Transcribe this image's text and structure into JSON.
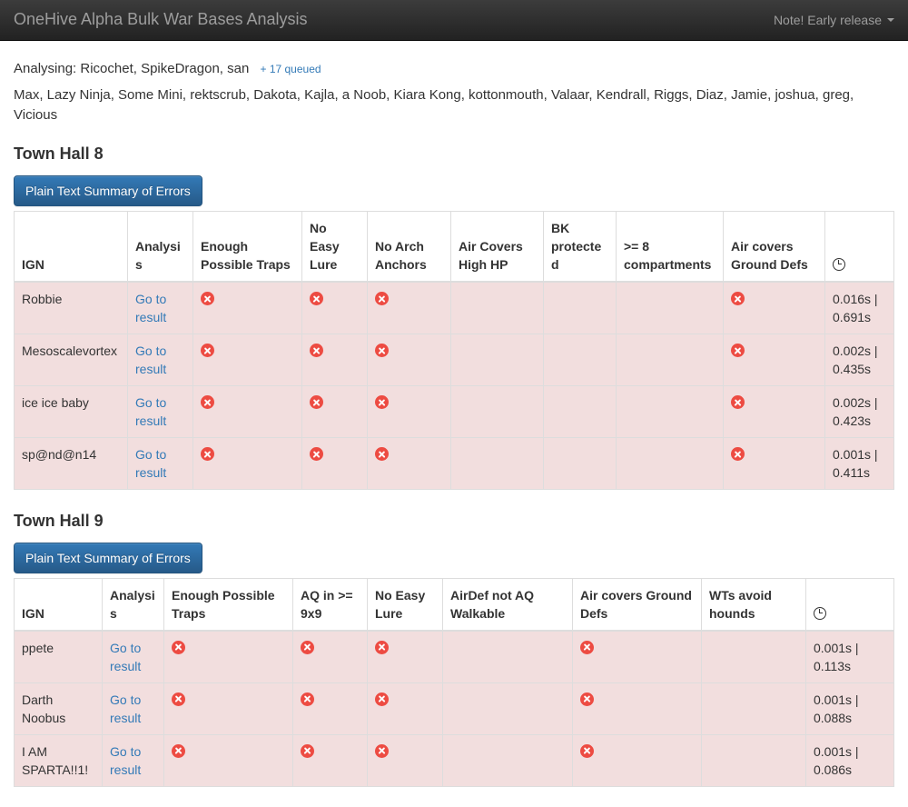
{
  "navbar": {
    "brand": "OneHive Alpha Bulk War Bases Analysis",
    "note_label": "Note! Early release"
  },
  "status": {
    "analysing": "Analysing: Ricochet, SpikeDragon, san",
    "queued": "+ 17 queued",
    "names": "Max, Lazy Ninja, Some Mini, rektscrub, Dakota, Kajla, a Noob, Kiara Kong, kottonmouth, Valaar, Kendrall, Riggs, Diaz, Jamie, joshua, greg, Vicious"
  },
  "colors": {
    "accent_blue": "#337ab7",
    "button_gradient_top": "#337ab7",
    "button_gradient_bottom": "#265a88",
    "danger_row_bg": "#f2dede",
    "error_icon_red": "#ed4b42",
    "navbar_text": "#9d9d9d",
    "table_border": "#dddddd"
  },
  "sections": [
    {
      "title": "Town Hall 8",
      "button_label": "Plain Text Summary of Errors",
      "columns": [
        "IGN",
        "Analysis",
        "Enough Possible Traps",
        "No Easy Lure",
        "No Arch Anchors",
        "Air Covers High HP",
        "BK protected",
        ">= 8 compartments",
        "Air covers Ground Defs"
      ],
      "timer_icon": "clock-icon",
      "rows": [
        {
          "ign": "Robbie",
          "link": "Go to result",
          "errors": [
            true,
            true,
            true,
            false,
            false,
            false,
            true
          ],
          "time": "0.016s | 0.691s"
        },
        {
          "ign": "Mesoscalevortex",
          "link": "Go to result",
          "errors": [
            true,
            true,
            true,
            false,
            false,
            false,
            true
          ],
          "time": "0.002s | 0.435s"
        },
        {
          "ign": "ice ice baby",
          "link": "Go to result",
          "errors": [
            true,
            true,
            true,
            false,
            false,
            false,
            true
          ],
          "time": "0.002s | 0.423s"
        },
        {
          "ign": "sp@nd@n14",
          "link": "Go to result",
          "errors": [
            true,
            true,
            true,
            false,
            false,
            false,
            true
          ],
          "time": "0.001s | 0.411s"
        }
      ]
    },
    {
      "title": "Town Hall 9",
      "button_label": "Plain Text Summary of Errors",
      "columns": [
        "IGN",
        "Analysis",
        "Enough Possible Traps",
        "AQ in >= 9x9",
        "No Easy Lure",
        "AirDef not AQ Walkable",
        "Air covers Ground Defs",
        "WTs avoid hounds"
      ],
      "timer_icon": "clock-icon",
      "rows": [
        {
          "ign": "ppete",
          "link": "Go to result",
          "errors": [
            true,
            true,
            true,
            false,
            true,
            false
          ],
          "time": "0.001s | 0.113s"
        },
        {
          "ign": "Darth Noobus",
          "link": "Go to result",
          "errors": [
            true,
            true,
            true,
            false,
            true,
            false
          ],
          "time": "0.001s | 0.088s"
        },
        {
          "ign": "I AM SPARTA!!1!",
          "link": "Go to result",
          "errors": [
            true,
            true,
            true,
            false,
            true,
            false
          ],
          "time": "0.001s | 0.086s"
        }
      ]
    }
  ]
}
